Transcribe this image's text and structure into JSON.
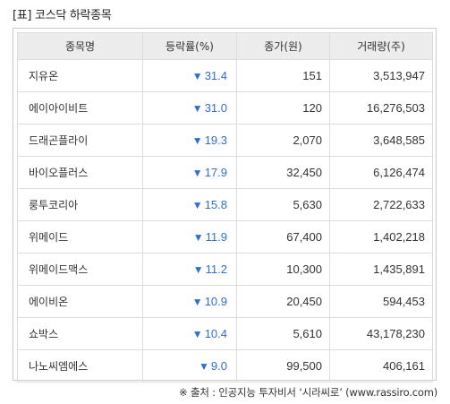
{
  "title": "[표] 코스닥 하락종목",
  "headers": [
    "종목명",
    "등락률(%)",
    "종가(원)",
    "거래량(주)"
  ],
  "down_arrow": "▼",
  "rows": [
    {
      "name": "지유온",
      "rate": "31.4",
      "price": "151",
      "volume": "3,513,947"
    },
    {
      "name": "에이아이비트",
      "rate": "31.0",
      "price": "120",
      "volume": "16,276,503"
    },
    {
      "name": "드래곤플라이",
      "rate": "19.3",
      "price": "2,070",
      "volume": "3,648,585"
    },
    {
      "name": "바이오플러스",
      "rate": "17.9",
      "price": "32,450",
      "volume": "6,126,474"
    },
    {
      "name": "룽투코리아",
      "rate": "15.8",
      "price": "5,630",
      "volume": "2,722,633"
    },
    {
      "name": "위메이드",
      "rate": "11.9",
      "price": "67,400",
      "volume": "1,402,218"
    },
    {
      "name": "위메이드맥스",
      "rate": "11.2",
      "price": "10,300",
      "volume": "1,435,891"
    },
    {
      "name": "에이비온",
      "rate": "10.9",
      "price": "20,450",
      "volume": "594,453"
    },
    {
      "name": "쇼박스",
      "rate": "10.4",
      "price": "5,610",
      "volume": "43,178,230"
    },
    {
      "name": "나노씨엠에스",
      "rate": "9.0",
      "price": "99,500",
      "volume": "406,161"
    }
  ],
  "source": "※ 출처 : 인공지능 투자비서 ‘시라씨로’ (www.rassiro.com)",
  "colors": {
    "down": "#2e6fd3",
    "header_bg": "#ececec",
    "border": "#dcdcdc"
  }
}
